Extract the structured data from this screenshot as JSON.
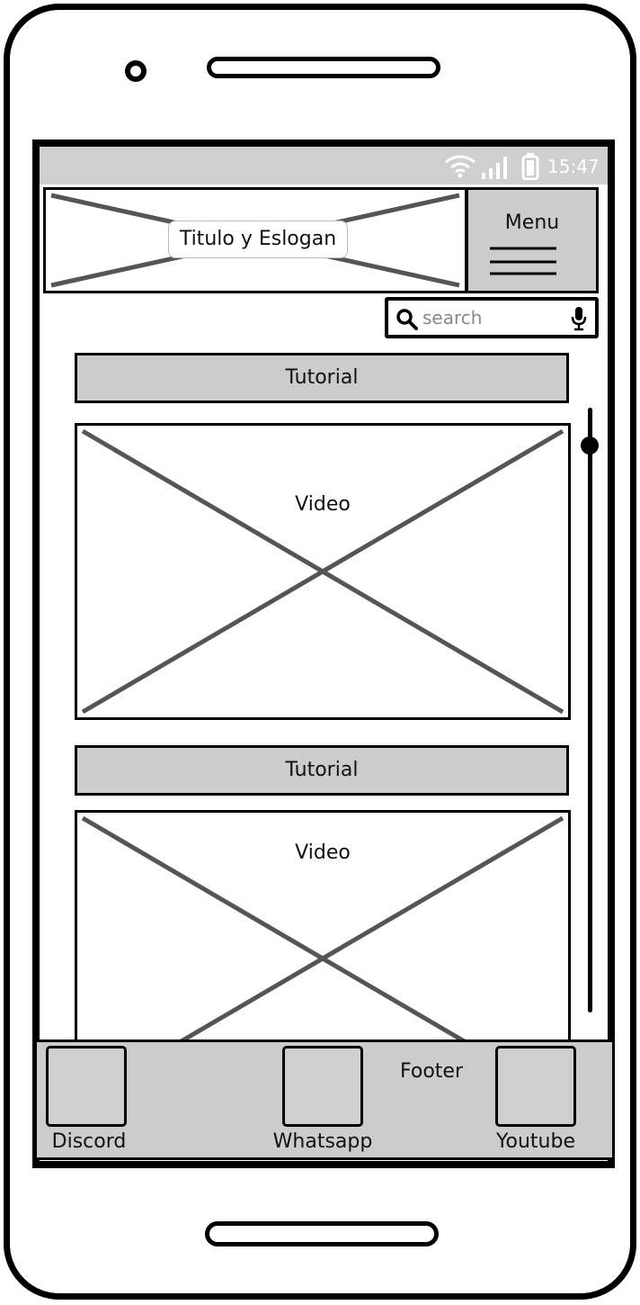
{
  "status_bar": {
    "time": "15:47"
  },
  "header": {
    "title_slogan": "Titulo y Eslogan",
    "menu_label": "Menu"
  },
  "search": {
    "placeholder": "search"
  },
  "sections": [
    {
      "tutorial_label": "Tutorial",
      "video_label": "Video"
    },
    {
      "tutorial_label": "Tutorial",
      "video_label": "Video"
    }
  ],
  "footer": {
    "title": "Footer",
    "links": [
      {
        "label": "Discord",
        "icon": "discord-icon"
      },
      {
        "label": "Whatsapp",
        "icon": "whatsapp-icon"
      },
      {
        "label": "Youtube",
        "icon": "youtube-icon"
      }
    ]
  },
  "colors": {
    "panel_gray": "#cccccc",
    "placeholder_cross": "#555555",
    "outline": "#000000"
  }
}
